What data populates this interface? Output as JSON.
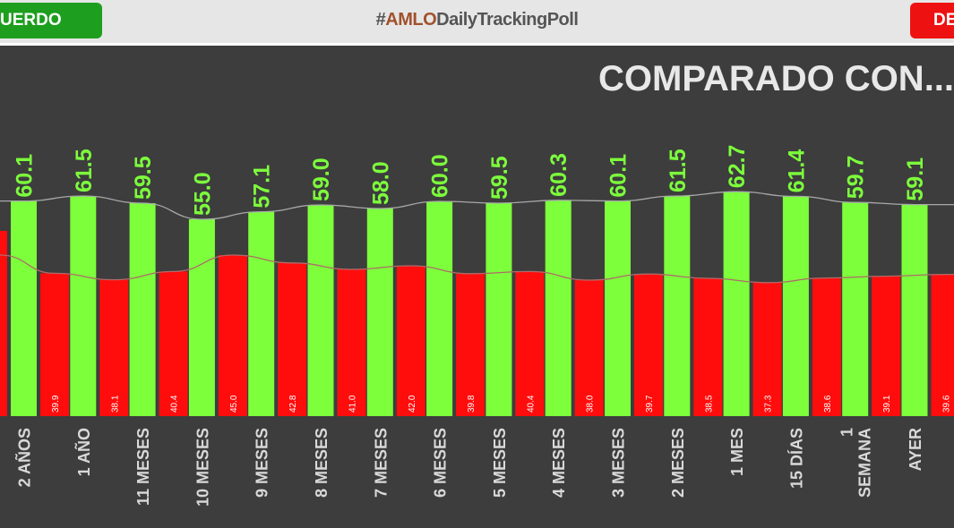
{
  "header": {
    "left_label": "UERDO",
    "right_label": "DE",
    "hashtag_prefix": "#",
    "hashtag_brand": "AMLO",
    "hashtag_suffix": "DailyTrackingPoll"
  },
  "colors": {
    "approve": "#7dff3c",
    "disapprove": "#ff0d0d",
    "background": "#3d3d3d",
    "approve_label": "#7dff3c",
    "disapprove_label": "#ffffff"
  },
  "chart_data": {
    "type": "bar",
    "title": "COMPARADO CON...",
    "categories": [
      [
        "2 AÑOS"
      ],
      [
        "1 AÑO"
      ],
      [
        "11 MESES"
      ],
      [
        "10 MESES"
      ],
      [
        "9 MESES"
      ],
      [
        "8 MESES"
      ],
      [
        "7 MESES"
      ],
      [
        "6 MESES"
      ],
      [
        "5 MESES"
      ],
      [
        "4 MESES"
      ],
      [
        "3 MESES"
      ],
      [
        "2 MESES"
      ],
      [
        "1 MES"
      ],
      [
        "15 DÍAS"
      ],
      [
        "1",
        "SEMANA"
      ],
      [
        "AYER"
      ]
    ],
    "series": [
      {
        "values": [
          60.1,
          61.5,
          59.5,
          55.0,
          57.1,
          59.0,
          58.0,
          60.0,
          59.5,
          60.3,
          60.1,
          61.5,
          62.7,
          61.4,
          59.7,
          59.1
        ],
        "labels": [
          "60.1",
          "61.5",
          "59.5",
          "55.0",
          "57.1",
          "59.0",
          "58.0",
          "60.0",
          "59.5",
          "60.3",
          "60.1",
          "61.5",
          "62.7",
          "61.4",
          "59.7",
          "59.1"
        ]
      },
      {
        "values": [
          39.9,
          38.1,
          40.4,
          45.0,
          42.8,
          41.0,
          42.0,
          39.8,
          40.4,
          38.0,
          39.7,
          38.5,
          37.3,
          38.6,
          39.1,
          39.6
        ],
        "labels": [
          "39.9",
          "38.1",
          "40.4",
          "45.0",
          "42.8",
          "41.0",
          "42.0",
          "39.8",
          "40.4",
          "38.0",
          "39.7",
          "38.5",
          "37.3",
          "38.6",
          "39.1",
          "39.6"
        ]
      }
    ],
    "partial_left_red_value": 45.0,
    "trend_lines": true,
    "grid": false
  }
}
